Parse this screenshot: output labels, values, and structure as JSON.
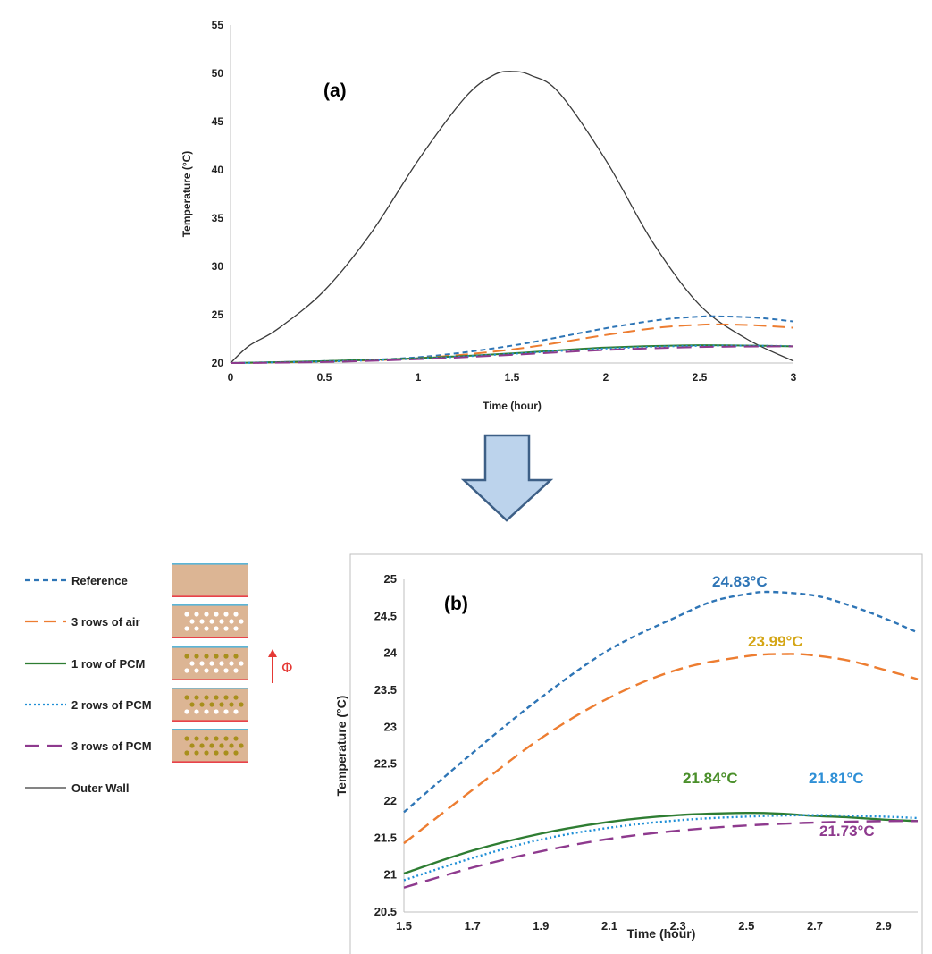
{
  "chart_data": [
    {
      "panel": "(a)",
      "type": "line",
      "xlabel": "Time (hour)",
      "ylabel": "Temperature (°C)",
      "xlim": [
        0,
        3
      ],
      "ylim": [
        20,
        55
      ],
      "xticks": [
        "0",
        "0.5",
        "1",
        "1.5",
        "2",
        "2.5",
        "3"
      ],
      "yticks": [
        "20",
        "25",
        "30",
        "35",
        "40",
        "45",
        "50",
        "55"
      ],
      "grid": false,
      "series": [
        {
          "name": "Outer Wall",
          "color": "#3a3a3a",
          "dash": "solid",
          "x": [
            0,
            0.1,
            0.25,
            0.5,
            0.75,
            1.0,
            1.25,
            1.4,
            1.5,
            1.6,
            1.75,
            2.0,
            2.25,
            2.5,
            2.75,
            3.0
          ],
          "y": [
            20,
            21.8,
            23.5,
            27.5,
            33.5,
            41,
            47.5,
            49.8,
            50.2,
            49.8,
            48,
            41,
            32.5,
            26,
            22.5,
            20.2
          ]
        },
        {
          "name": "Reference",
          "color": "#2e75b6",
          "dash": "short",
          "x": [
            0,
            0.5,
            1.0,
            1.5,
            2.0,
            2.3,
            2.5,
            2.6,
            2.8,
            3.0
          ],
          "y": [
            20,
            20.2,
            20.6,
            21.8,
            23.6,
            24.5,
            24.8,
            24.83,
            24.7,
            24.3
          ]
        },
        {
          "name": "3 rows of air",
          "color": "#ed7d31",
          "dash": "long",
          "x": [
            0,
            0.5,
            1.0,
            1.5,
            2.0,
            2.3,
            2.5,
            2.6,
            2.8,
            3.0
          ],
          "y": [
            20,
            20.15,
            20.5,
            21.4,
            22.9,
            23.7,
            23.95,
            23.99,
            23.9,
            23.65
          ]
        },
        {
          "name": "1 row of PCM",
          "color": "#2e7d32",
          "dash": "solid",
          "x": [
            0,
            0.5,
            1.0,
            1.5,
            2.0,
            2.5,
            3.0
          ],
          "y": [
            20,
            20.2,
            20.5,
            21.0,
            21.6,
            21.84,
            21.73
          ]
        },
        {
          "name": "2 rows of PCM",
          "color": "#1f8fd6",
          "dash": "dot",
          "x": [
            0,
            0.5,
            1.0,
            1.5,
            2.0,
            2.5,
            3.0
          ],
          "y": [
            20,
            20.15,
            20.45,
            20.95,
            21.5,
            21.78,
            21.76
          ]
        },
        {
          "name": "3 rows of PCM",
          "color": "#8e3a8e",
          "dash": "longdash",
          "x": [
            0,
            0.5,
            1.0,
            1.5,
            2.0,
            2.5,
            3.0
          ],
          "y": [
            20,
            20.1,
            20.4,
            20.85,
            21.35,
            21.65,
            21.73
          ]
        }
      ]
    },
    {
      "panel": "(b)",
      "type": "line",
      "xlabel": "Time (hour)",
      "ylabel": "Temperature (°C)",
      "xlim": [
        1.5,
        3.0
      ],
      "ylim": [
        20.5,
        25
      ],
      "xticks": [
        "1.5",
        "1.7",
        "1.9",
        "2.1",
        "2.3",
        "2.5",
        "2.7",
        "2.9"
      ],
      "yticks": [
        "20.5",
        "21",
        "21.5",
        "22",
        "22.5",
        "23",
        "23.5",
        "24",
        "24.5",
        "25"
      ],
      "grid": false,
      "series": [
        {
          "name": "Reference",
          "color": "#2e75b6",
          "dash": "short",
          "x": [
            1.5,
            1.7,
            1.9,
            2.1,
            2.3,
            2.4,
            2.5,
            2.57,
            2.7,
            2.8,
            2.9,
            3.0
          ],
          "y": [
            21.85,
            22.65,
            23.4,
            24.05,
            24.5,
            24.7,
            24.8,
            24.83,
            24.78,
            24.65,
            24.48,
            24.28
          ]
        },
        {
          "name": "3 rows of air",
          "color": "#ed7d31",
          "dash": "long",
          "x": [
            1.5,
            1.7,
            1.9,
            2.1,
            2.3,
            2.5,
            2.62,
            2.7,
            2.8,
            2.9,
            3.0
          ],
          "y": [
            21.43,
            22.15,
            22.85,
            23.4,
            23.78,
            23.96,
            23.99,
            23.97,
            23.9,
            23.78,
            23.65
          ]
        },
        {
          "name": "1 row of PCM",
          "color": "#2e7d32",
          "dash": "solid",
          "x": [
            1.5,
            1.7,
            1.9,
            2.1,
            2.3,
            2.5,
            2.6,
            2.7,
            2.8,
            2.9,
            3.0
          ],
          "y": [
            21.02,
            21.33,
            21.56,
            21.72,
            21.81,
            21.84,
            21.83,
            21.8,
            21.78,
            21.75,
            21.73
          ]
        },
        {
          "name": "2 rows of PCM",
          "color": "#1f8fd6",
          "dash": "dot",
          "x": [
            1.5,
            1.7,
            1.9,
            2.1,
            2.3,
            2.5,
            2.7,
            2.9,
            3.0
          ],
          "y": [
            20.93,
            21.23,
            21.48,
            21.64,
            21.74,
            21.79,
            21.81,
            21.79,
            21.77
          ]
        },
        {
          "name": "3 rows of PCM",
          "color": "#8e3a8e",
          "dash": "longdash",
          "x": [
            1.5,
            1.7,
            1.9,
            2.1,
            2.3,
            2.5,
            2.7,
            2.9,
            3.0
          ],
          "y": [
            20.83,
            21.1,
            21.32,
            21.49,
            21.6,
            21.67,
            21.71,
            21.73,
            21.73
          ]
        }
      ],
      "annotations": [
        {
          "text": "24.83°C",
          "color": "#2e75b6"
        },
        {
          "text": "23.99°C",
          "color": "#d4a514"
        },
        {
          "text": "21.84°C",
          "color": "#4a8f2a"
        },
        {
          "text": "21.81°C",
          "color": "#2e8fd6"
        },
        {
          "text": "21.73°C",
          "color": "#8e3a8e"
        }
      ]
    }
  ],
  "legend": {
    "placement": "left of panel (b)",
    "items": [
      {
        "name": "Reference",
        "color": "#2e75b6",
        "dash": "short",
        "swatch": "plain"
      },
      {
        "name": "3 rows of air",
        "color": "#ed7d31",
        "dash": "long",
        "swatch": "air3"
      },
      {
        "name": "1 row of PCM",
        "color": "#2e7d32",
        "dash": "solid",
        "swatch": "pcm1"
      },
      {
        "name": "2 rows of PCM",
        "color": "#1f8fd6",
        "dash": "dot",
        "swatch": "pcm2"
      },
      {
        "name": "3 rows of PCM",
        "color": "#8e3a8e",
        "dash": "longdash",
        "swatch": "pcm3"
      },
      {
        "name": "Outer Wall",
        "color": "#3a3a3a",
        "dash": "solid",
        "swatch": "none"
      }
    ],
    "flux_symbol": "Φ",
    "flux_color": "#e53935"
  },
  "colors": {
    "arrow_fill": "#bcd3ec",
    "arrow_stroke": "#3d5f86",
    "block_fill": "#dcb594",
    "block_top": "#5bb5d6",
    "block_bottom": "#e8424a",
    "air_dot": "#ffffff",
    "pcm_dot": "#a88f1c"
  }
}
